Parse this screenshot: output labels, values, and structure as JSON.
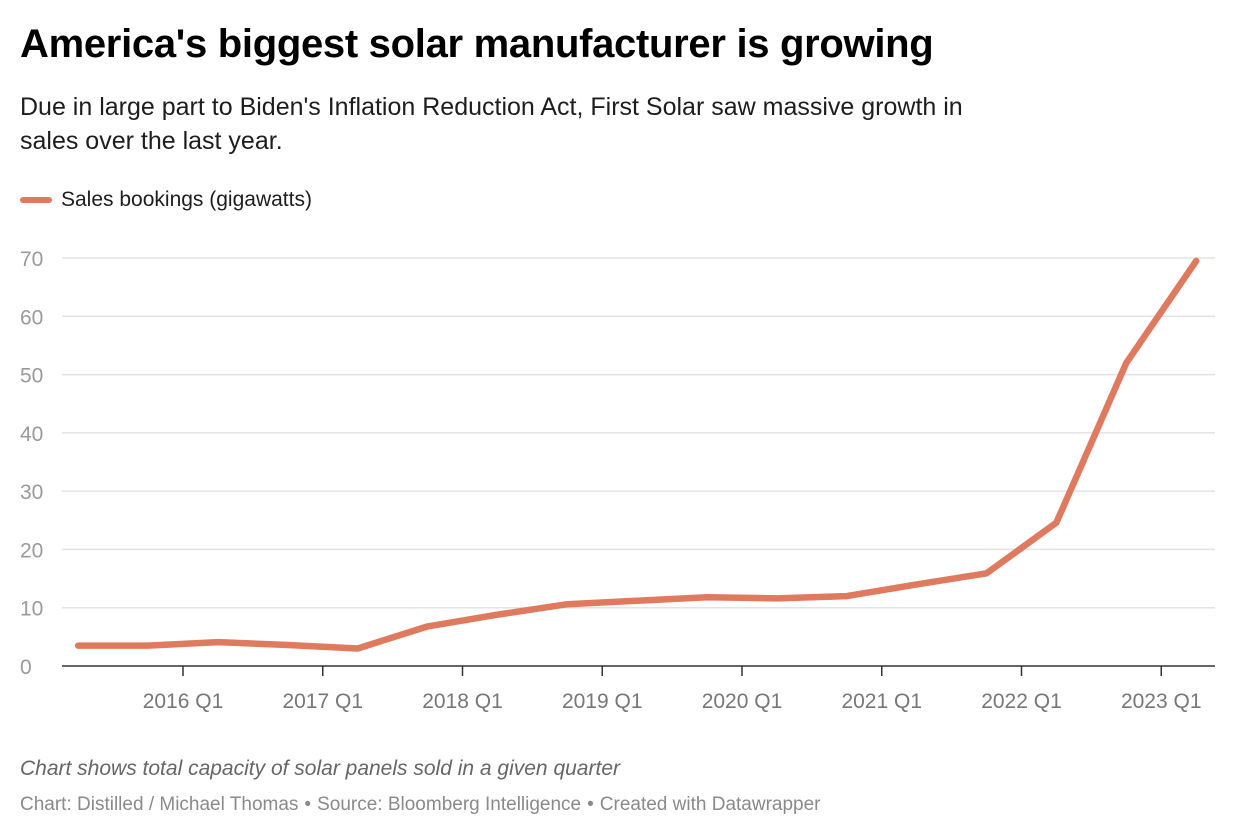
{
  "header": {
    "title": "America's biggest solar manufacturer is growing",
    "subtitle": "Due in large part to Biden's Inflation Reduction Act, First Solar saw massive growth in sales over the last year."
  },
  "legend": {
    "label": "Sales bookings (gigawatts)"
  },
  "footer": {
    "note": "Chart shows total capacity of solar panels sold in a given quarter",
    "credit": "Chart: Distilled / Michael Thomas",
    "source": "Source: Bloomberg Intelligence",
    "tool": "Created with Datawrapper",
    "separator": "•"
  },
  "colors": {
    "series": "#e07a5f",
    "grid": "#e3e3e3",
    "axis": "#333333",
    "tick_label": "#9a9a9a",
    "x_tick_label": "#777777"
  },
  "chart_data": {
    "type": "line",
    "title": "America's biggest solar manufacturer is growing",
    "xlabel": "",
    "ylabel": "",
    "x_ticks": [
      "2016 Q1",
      "2017 Q1",
      "2018 Q1",
      "2019 Q1",
      "2020 Q1",
      "2021 Q1",
      "2022 Q1",
      "2023 Q1"
    ],
    "y_ticks": [
      0,
      10,
      20,
      30,
      40,
      50,
      60,
      70
    ],
    "ylim": [
      0,
      70
    ],
    "grid": true,
    "legend_position": "top-left",
    "series": [
      {
        "name": "Sales bookings (gigawatts)",
        "x": [
          "2015 Q2",
          "2015 Q4",
          "2016 Q2",
          "2016 Q4",
          "2017 Q2",
          "2017 Q4",
          "2018 Q2",
          "2018 Q4",
          "2019 Q2",
          "2019 Q4",
          "2020 Q2",
          "2020 Q4",
          "2021 Q2",
          "2021 Q4",
          "2022 Q2",
          "2022 Q4",
          "2023 Q2"
        ],
        "values": [
          3.5,
          3.5,
          4.1,
          3.6,
          3.0,
          6.8,
          8.8,
          10.6,
          11.2,
          11.8,
          11.6,
          12.0,
          14.0,
          15.9,
          24.6,
          52.0,
          69.5
        ]
      }
    ]
  }
}
